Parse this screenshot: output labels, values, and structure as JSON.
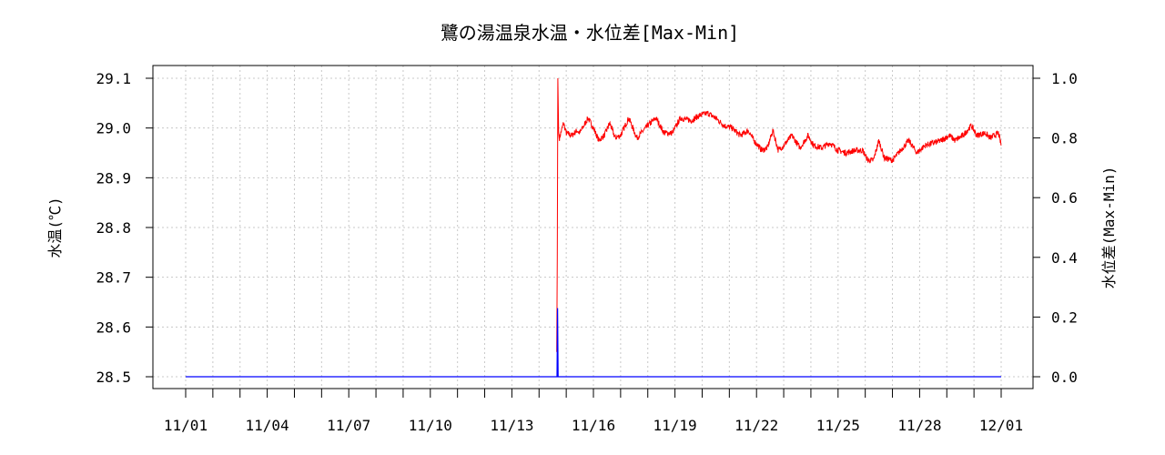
{
  "chart_data": {
    "type": "line",
    "title": "鷺の湯温泉水温・水位差[Max-Min]",
    "ylabel_left": "水温(℃)",
    "ylabel_right": "水位差(Max-Min)",
    "xlabel": "",
    "x_range": [
      "11/01",
      "12/01"
    ],
    "x_tick_labels": [
      "11/01",
      "11/04",
      "11/07",
      "11/10",
      "11/13",
      "11/16",
      "11/19",
      "11/22",
      "11/25",
      "11/28",
      "12/01"
    ],
    "x_minor_tick_interval_days": 1,
    "y_left_range": [
      28.5,
      29.1
    ],
    "y_left_ticks": [
      "28.5",
      "28.6",
      "28.7",
      "28.8",
      "28.9",
      "29.0",
      "29.1"
    ],
    "y_right_range": [
      0.0,
      1.0
    ],
    "y_right_ticks": [
      "0.0",
      "0.2",
      "0.4",
      "0.6",
      "0.8",
      "1.0"
    ],
    "grid": true,
    "series": [
      {
        "axis": "left",
        "color": "#ff0000",
        "start_day": 13.7,
        "spike_points": [
          [
            13.65,
            28.55
          ],
          [
            13.67,
            28.74
          ],
          [
            13.69,
            29.1
          ],
          [
            13.72,
            28.99
          ]
        ],
        "points": [
          [
            13.75,
            28.98
          ],
          [
            13.9,
            29.01
          ],
          [
            14.0,
            28.99
          ],
          [
            14.2,
            28.985
          ],
          [
            14.4,
            28.995
          ],
          [
            14.5,
            28.99
          ],
          [
            14.6,
            29.0
          ],
          [
            14.8,
            29.02
          ],
          [
            15.0,
            29.0
          ],
          [
            15.2,
            28.975
          ],
          [
            15.4,
            28.985
          ],
          [
            15.6,
            29.01
          ],
          [
            15.8,
            28.98
          ],
          [
            16.0,
            28.985
          ],
          [
            16.3,
            29.02
          ],
          [
            16.6,
            28.98
          ],
          [
            17.0,
            29.005
          ],
          [
            17.3,
            29.02
          ],
          [
            17.6,
            28.99
          ],
          [
            17.9,
            28.99
          ],
          [
            18.2,
            29.02
          ],
          [
            18.6,
            29.015
          ],
          [
            18.9,
            29.025
          ],
          [
            19.2,
            29.03
          ],
          [
            19.5,
            29.02
          ],
          [
            19.8,
            29.005
          ],
          [
            20.1,
            29.0
          ],
          [
            20.4,
            28.985
          ],
          [
            20.7,
            28.995
          ],
          [
            20.9,
            28.975
          ],
          [
            21.2,
            28.955
          ],
          [
            21.4,
            28.96
          ],
          [
            21.6,
            28.995
          ],
          [
            21.8,
            28.955
          ],
          [
            22.0,
            28.965
          ],
          [
            22.3,
            28.985
          ],
          [
            22.6,
            28.96
          ],
          [
            22.9,
            28.985
          ],
          [
            23.1,
            28.965
          ],
          [
            23.4,
            28.96
          ],
          [
            23.7,
            28.97
          ],
          [
            24.0,
            28.955
          ],
          [
            24.3,
            28.95
          ],
          [
            24.6,
            28.955
          ],
          [
            24.9,
            28.955
          ],
          [
            25.1,
            28.935
          ],
          [
            25.3,
            28.935
          ],
          [
            25.5,
            28.975
          ],
          [
            25.7,
            28.94
          ],
          [
            26.0,
            28.935
          ],
          [
            26.3,
            28.955
          ],
          [
            26.6,
            28.975
          ],
          [
            26.9,
            28.95
          ],
          [
            27.2,
            28.965
          ],
          [
            27.5,
            28.97
          ],
          [
            27.8,
            28.975
          ],
          [
            28.1,
            28.985
          ],
          [
            28.3,
            28.975
          ],
          [
            28.6,
            28.985
          ],
          [
            28.9,
            29.005
          ],
          [
            29.1,
            28.985
          ],
          [
            29.4,
            28.99
          ],
          [
            29.6,
            28.98
          ],
          [
            29.9,
            28.99
          ],
          [
            30.0,
            28.965
          ]
        ]
      },
      {
        "axis": "right",
        "color": "#0000ff",
        "points": [
          [
            0,
            0.0
          ],
          [
            13.66,
            0.0
          ],
          [
            13.68,
            0.23
          ],
          [
            13.7,
            0.0
          ],
          [
            30.0,
            0.0
          ]
        ]
      }
    ]
  }
}
